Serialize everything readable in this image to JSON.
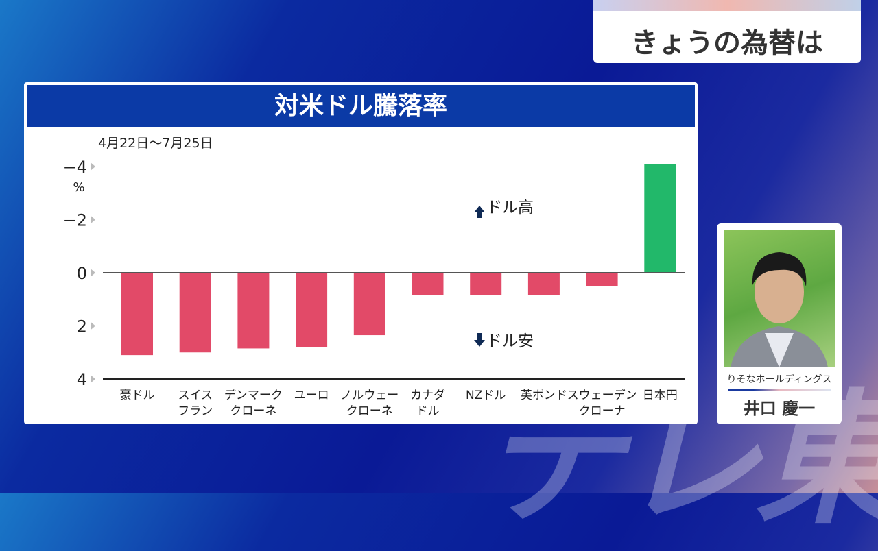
{
  "header": {
    "title": "きょうの為替は"
  },
  "watermark": "テレ東",
  "presenter": {
    "organization": "りそなホールディングス",
    "name": "井口 慶一"
  },
  "chart_data": {
    "type": "bar",
    "title": "対米ドル騰落率",
    "subtitle": "4月22日〜7月25日",
    "ylabel": "%",
    "ylim": [
      -4,
      4
    ],
    "y_inverted": true,
    "yticks": [
      {
        "v": -4,
        "label": "−4"
      },
      {
        "v": -2,
        "label": "−2"
      },
      {
        "v": 0,
        "label": "0"
      },
      {
        "v": 2,
        "label": "2"
      },
      {
        "v": 4,
        "label": "4"
      }
    ],
    "categories": [
      [
        "豪ドル"
      ],
      [
        "スイス",
        "フラン"
      ],
      [
        "デンマーク",
        "クローネ"
      ],
      [
        "ユーロ"
      ],
      [
        "ノルウェー",
        "クローネ"
      ],
      [
        "カナダ",
        "ドル"
      ],
      [
        "NZドル"
      ],
      [
        "英ポンド"
      ],
      [
        "スウェーデン",
        "クローナ"
      ],
      [
        "日本円"
      ]
    ],
    "values": [
      3.1,
      3.0,
      2.85,
      2.8,
      2.35,
      0.85,
      0.85,
      0.85,
      0.5,
      -4.1
    ],
    "annotations": {
      "up": "ドル高",
      "down": "ドル安"
    },
    "colors": {
      "negative_dollar": "#e24a68",
      "positive_dollar": "#22b86a"
    }
  }
}
